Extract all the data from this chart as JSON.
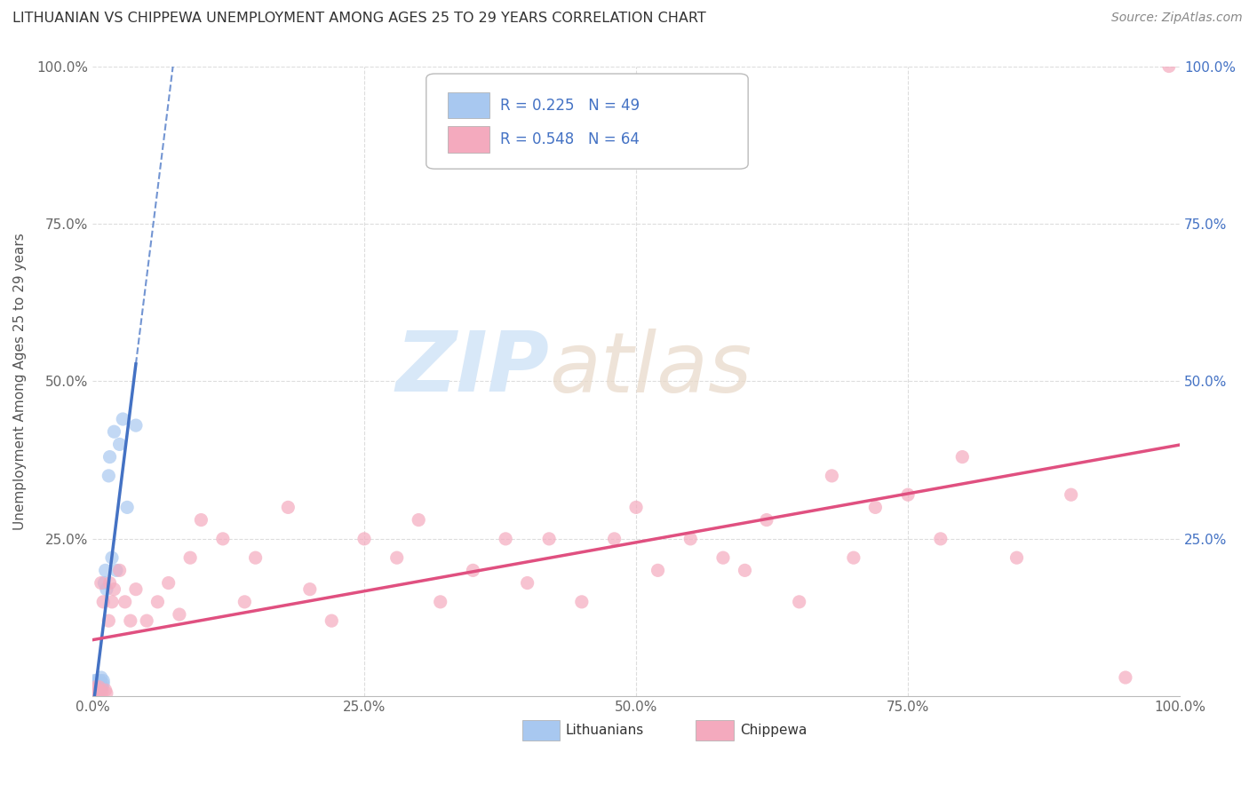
{
  "title": "LITHUANIAN VS CHIPPEWA UNEMPLOYMENT AMONG AGES 25 TO 29 YEARS CORRELATION CHART",
  "source": "Source: ZipAtlas.com",
  "ylabel": "Unemployment Among Ages 25 to 29 years",
  "xlim": [
    0,
    1.0
  ],
  "ylim": [
    0,
    1.0
  ],
  "xtick_labels": [
    "0.0%",
    "25.0%",
    "50.0%",
    "75.0%",
    "100.0%"
  ],
  "xtick_values": [
    0.0,
    0.25,
    0.5,
    0.75,
    1.0
  ],
  "ytick_labels": [
    "",
    "25.0%",
    "50.0%",
    "75.0%",
    "100.0%"
  ],
  "ytick_values": [
    0.0,
    0.25,
    0.5,
    0.75,
    1.0
  ],
  "right_ytick_labels": [
    "25.0%",
    "50.0%",
    "75.0%",
    "100.0%"
  ],
  "right_ytick_values": [
    0.25,
    0.5,
    0.75,
    1.0
  ],
  "legend_R_blue": "R = 0.225",
  "legend_N_blue": "N = 49",
  "legend_R_pink": "R = 0.548",
  "legend_N_pink": "N = 64",
  "legend_label1": "Lithuanians",
  "legend_label2": "Chippewa",
  "blue_scatter_color": "#A8C8F0",
  "pink_scatter_color": "#F4AABE",
  "blue_line_color": "#4472C4",
  "pink_line_color": "#E05080",
  "legend_text_color": "#4472C4",
  "watermark_color": "#D8E8F8",
  "background_color": "#FFFFFF",
  "grid_color": "#DDDDDD",
  "lith_x": [
    0.001,
    0.001,
    0.001,
    0.001,
    0.001,
    0.001,
    0.001,
    0.001,
    0.002,
    0.002,
    0.002,
    0.002,
    0.002,
    0.002,
    0.002,
    0.003,
    0.003,
    0.003,
    0.003,
    0.003,
    0.004,
    0.004,
    0.004,
    0.004,
    0.005,
    0.005,
    0.005,
    0.005,
    0.006,
    0.006,
    0.007,
    0.007,
    0.008,
    0.008,
    0.009,
    0.01,
    0.01,
    0.011,
    0.012,
    0.013,
    0.015,
    0.016,
    0.018,
    0.02,
    0.022,
    0.025,
    0.028,
    0.032,
    0.04
  ],
  "lith_y": [
    0.001,
    0.002,
    0.003,
    0.005,
    0.008,
    0.012,
    0.015,
    0.02,
    0.001,
    0.003,
    0.006,
    0.01,
    0.015,
    0.018,
    0.025,
    0.002,
    0.005,
    0.01,
    0.015,
    0.02,
    0.005,
    0.01,
    0.015,
    0.025,
    0.003,
    0.008,
    0.015,
    0.02,
    0.01,
    0.02,
    0.015,
    0.025,
    0.02,
    0.03,
    0.015,
    0.02,
    0.025,
    0.18,
    0.2,
    0.17,
    0.35,
    0.38,
    0.22,
    0.42,
    0.2,
    0.4,
    0.44,
    0.3,
    0.43
  ],
  "chip_x": [
    0.001,
    0.001,
    0.002,
    0.002,
    0.003,
    0.003,
    0.004,
    0.005,
    0.005,
    0.006,
    0.006,
    0.007,
    0.008,
    0.009,
    0.01,
    0.012,
    0.013,
    0.015,
    0.016,
    0.018,
    0.02,
    0.025,
    0.03,
    0.035,
    0.04,
    0.05,
    0.06,
    0.07,
    0.08,
    0.09,
    0.1,
    0.12,
    0.14,
    0.15,
    0.18,
    0.2,
    0.22,
    0.25,
    0.28,
    0.3,
    0.32,
    0.35,
    0.38,
    0.4,
    0.42,
    0.45,
    0.48,
    0.5,
    0.52,
    0.55,
    0.58,
    0.6,
    0.62,
    0.65,
    0.68,
    0.7,
    0.72,
    0.75,
    0.78,
    0.8,
    0.85,
    0.9,
    0.95,
    0.99
  ],
  "chip_y": [
    0.002,
    0.008,
    0.003,
    0.012,
    0.005,
    0.015,
    0.005,
    0.003,
    0.01,
    0.005,
    0.015,
    0.005,
    0.18,
    0.008,
    0.15,
    0.01,
    0.005,
    0.12,
    0.18,
    0.15,
    0.17,
    0.2,
    0.15,
    0.12,
    0.17,
    0.12,
    0.15,
    0.18,
    0.13,
    0.22,
    0.28,
    0.25,
    0.15,
    0.22,
    0.3,
    0.17,
    0.12,
    0.25,
    0.22,
    0.28,
    0.15,
    0.2,
    0.25,
    0.18,
    0.25,
    0.15,
    0.25,
    0.3,
    0.2,
    0.25,
    0.22,
    0.2,
    0.28,
    0.15,
    0.35,
    0.22,
    0.3,
    0.32,
    0.25,
    0.38,
    0.22,
    0.32,
    0.03,
    1.0
  ]
}
